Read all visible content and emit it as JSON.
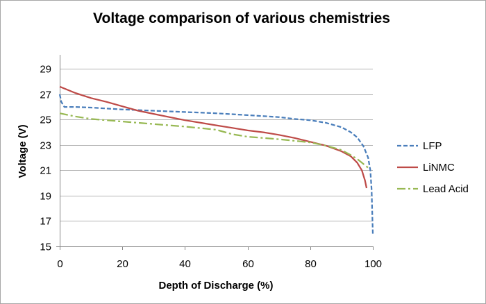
{
  "chart_data": {
    "type": "line",
    "title": "Voltage comparison of various chemistries",
    "xlabel": "Depth of Discharge (%)",
    "ylabel": "Voltage (V)",
    "xlim": [
      0,
      100
    ],
    "ylim": [
      15,
      30
    ],
    "x_ticks": [
      0,
      20,
      40,
      60,
      80,
      100
    ],
    "y_ticks": [
      15,
      17,
      19,
      21,
      23,
      25,
      27,
      29
    ],
    "grid": "horizontal",
    "legend_position": "right",
    "series": [
      {
        "name": "LFP",
        "color": "#4a7ebb",
        "dash": "dashed",
        "points": [
          [
            0,
            27.0
          ],
          [
            0.5,
            26.4
          ],
          [
            1.5,
            26.0
          ],
          [
            5,
            26.0
          ],
          [
            10,
            25.95
          ],
          [
            20,
            25.8
          ],
          [
            30,
            25.7
          ],
          [
            40,
            25.6
          ],
          [
            50,
            25.5
          ],
          [
            60,
            25.35
          ],
          [
            70,
            25.2
          ],
          [
            75,
            25.05
          ],
          [
            80,
            24.95
          ],
          [
            85,
            24.75
          ],
          [
            90,
            24.4
          ],
          [
            93,
            24.0
          ],
          [
            95,
            23.6
          ],
          [
            97,
            22.9
          ],
          [
            98.5,
            22.0
          ],
          [
            99.2,
            21.0
          ],
          [
            99.6,
            19.5
          ],
          [
            100,
            16.0
          ]
        ]
      },
      {
        "name": "LiNMC",
        "color": "#be4b48",
        "dash": "solid",
        "points": [
          [
            0,
            27.6
          ],
          [
            5,
            27.1
          ],
          [
            10,
            26.7
          ],
          [
            15,
            26.4
          ],
          [
            20,
            26.05
          ],
          [
            25,
            25.7
          ],
          [
            30,
            25.45
          ],
          [
            35,
            25.2
          ],
          [
            40,
            24.95
          ],
          [
            45,
            24.75
          ],
          [
            50,
            24.55
          ],
          [
            55,
            24.35
          ],
          [
            60,
            24.15
          ],
          [
            65,
            24.0
          ],
          [
            70,
            23.8
          ],
          [
            75,
            23.55
          ],
          [
            80,
            23.25
          ],
          [
            85,
            22.95
          ],
          [
            90,
            22.5
          ],
          [
            93,
            22.1
          ],
          [
            95,
            21.6
          ],
          [
            96.5,
            21.0
          ],
          [
            97.5,
            20.2
          ],
          [
            98,
            19.6
          ]
        ]
      },
      {
        "name": "Lead Acid",
        "color": "#98b954",
        "dash": "dash-dot",
        "points": [
          [
            0,
            25.5
          ],
          [
            5,
            25.25
          ],
          [
            10,
            25.05
          ],
          [
            20,
            24.85
          ],
          [
            30,
            24.65
          ],
          [
            40,
            24.45
          ],
          [
            50,
            24.2
          ],
          [
            55,
            23.85
          ],
          [
            60,
            23.65
          ],
          [
            70,
            23.45
          ],
          [
            80,
            23.2
          ],
          [
            85,
            22.95
          ],
          [
            90,
            22.6
          ],
          [
            93,
            22.2
          ],
          [
            95,
            21.9
          ],
          [
            97,
            21.5
          ],
          [
            98.5,
            21.2
          ]
        ]
      }
    ]
  }
}
